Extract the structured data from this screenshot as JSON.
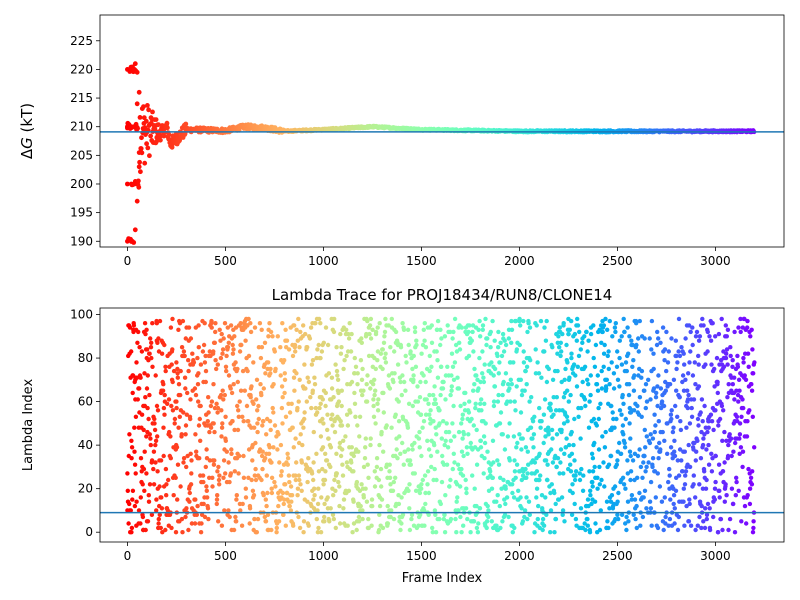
{
  "chart_data": [
    {
      "type": "scatter",
      "title": "",
      "xlabel": "",
      "ylabel": "ΔG (kT)",
      "ylabel_prefix": "Δ",
      "ylabel_var": "G",
      "ylabel_suffix": " (kT)",
      "xlim": [
        -140,
        3350
      ],
      "ylim": [
        189,
        229.5
      ],
      "xticks": [
        0,
        500,
        1000,
        1500,
        2000,
        2500,
        3000
      ],
      "xtick_labels": [
        "0",
        "500",
        "1000",
        "1500",
        "2000",
        "2500",
        "3000"
      ],
      "yticks": [
        190,
        195,
        200,
        205,
        210,
        215,
        220,
        225
      ],
      "ytick_labels": [
        "190",
        "195",
        "200",
        "205",
        "210",
        "215",
        "220",
        "225"
      ],
      "grid": false,
      "colormap": "rainbow (red → violet along frame index)",
      "hline": {
        "y": 209.1,
        "color": "#1f77b4"
      },
      "n_points": 3200,
      "trace_description": "Running free-energy estimate per frame: large spread in the first ~150 frames, converging to ~209 kT",
      "trace_points": [
        {
          "x": 0,
          "y": 220
        },
        {
          "x": 0,
          "y": 210
        },
        {
          "x": 0,
          "y": 200
        },
        {
          "x": 0,
          "y": 190
        },
        {
          "x": 20,
          "y": 220
        },
        {
          "x": 20,
          "y": 210
        },
        {
          "x": 20,
          "y": 200
        },
        {
          "x": 25,
          "y": 190
        },
        {
          "x": 35,
          "y": 220
        },
        {
          "x": 35,
          "y": 210
        },
        {
          "x": 35,
          "y": 200
        },
        {
          "x": 40,
          "y": 221
        },
        {
          "x": 40,
          "y": 192
        },
        {
          "x": 50,
          "y": 214
        },
        {
          "x": 50,
          "y": 219.5
        },
        {
          "x": 50,
          "y": 197
        },
        {
          "x": 60,
          "y": 216
        },
        {
          "x": 60,
          "y": 203
        },
        {
          "x": 80,
          "y": 212
        },
        {
          "x": 80,
          "y": 206
        },
        {
          "x": 100,
          "y": 211
        },
        {
          "x": 100,
          "y": 207
        },
        {
          "x": 150,
          "y": 211
        },
        {
          "x": 150,
          "y": 208
        },
        {
          "x": 200,
          "y": 210
        },
        {
          "x": 220,
          "y": 207
        },
        {
          "x": 300,
          "y": 209.5
        },
        {
          "x": 500,
          "y": 209.3
        },
        {
          "x": 600,
          "y": 210
        },
        {
          "x": 700,
          "y": 209.8
        },
        {
          "x": 800,
          "y": 209.2
        },
        {
          "x": 1000,
          "y": 209.5
        },
        {
          "x": 1250,
          "y": 210
        },
        {
          "x": 1500,
          "y": 209.5
        },
        {
          "x": 2000,
          "y": 209.2
        },
        {
          "x": 2500,
          "y": 209.2
        },
        {
          "x": 3000,
          "y": 209.2
        },
        {
          "x": 3200,
          "y": 209.2
        }
      ]
    },
    {
      "type": "scatter",
      "title": "Lambda Trace for PROJ18434/RUN8/CLONE14",
      "xlabel": "Frame Index",
      "ylabel": "Lambda Index",
      "xlim": [
        -140,
        3350
      ],
      "ylim": [
        -4.5,
        103
      ],
      "xticks": [
        0,
        500,
        1000,
        1500,
        2000,
        2500,
        3000
      ],
      "xtick_labels": [
        "0",
        "500",
        "1000",
        "1500",
        "2000",
        "2500",
        "3000"
      ],
      "yticks": [
        0,
        20,
        40,
        60,
        80,
        100
      ],
      "ytick_labels": [
        "0",
        "20",
        "40",
        "60",
        "80",
        "100"
      ],
      "grid": false,
      "colormap": "rainbow (red → violet along frame index)",
      "hline": {
        "y": 9,
        "color": "#1f77b4"
      },
      "n_points": 3200,
      "point_description": "Lambda state index visited at each frame, spread roughly uniformly between 0 and 99",
      "sample_points": [
        {
          "x": 0,
          "y": 10
        },
        {
          "x": 5,
          "y": 95
        },
        {
          "x": 20,
          "y": 42
        },
        {
          "x": 40,
          "y": 70
        },
        {
          "x": 100,
          "y": 5
        },
        {
          "x": 150,
          "y": 88
        },
        {
          "x": 250,
          "y": 60
        },
        {
          "x": 400,
          "y": 30
        },
        {
          "x": 600,
          "y": 97
        },
        {
          "x": 800,
          "y": 15
        },
        {
          "x": 1000,
          "y": 50
        },
        {
          "x": 1200,
          "y": 75
        },
        {
          "x": 1500,
          "y": 22
        },
        {
          "x": 1800,
          "y": 90
        },
        {
          "x": 2000,
          "y": 45
        },
        {
          "x": 2250,
          "y": 98
        },
        {
          "x": 2500,
          "y": 8
        },
        {
          "x": 2800,
          "y": 65
        },
        {
          "x": 3000,
          "y": 35
        },
        {
          "x": 3150,
          "y": 72
        }
      ]
    }
  ]
}
